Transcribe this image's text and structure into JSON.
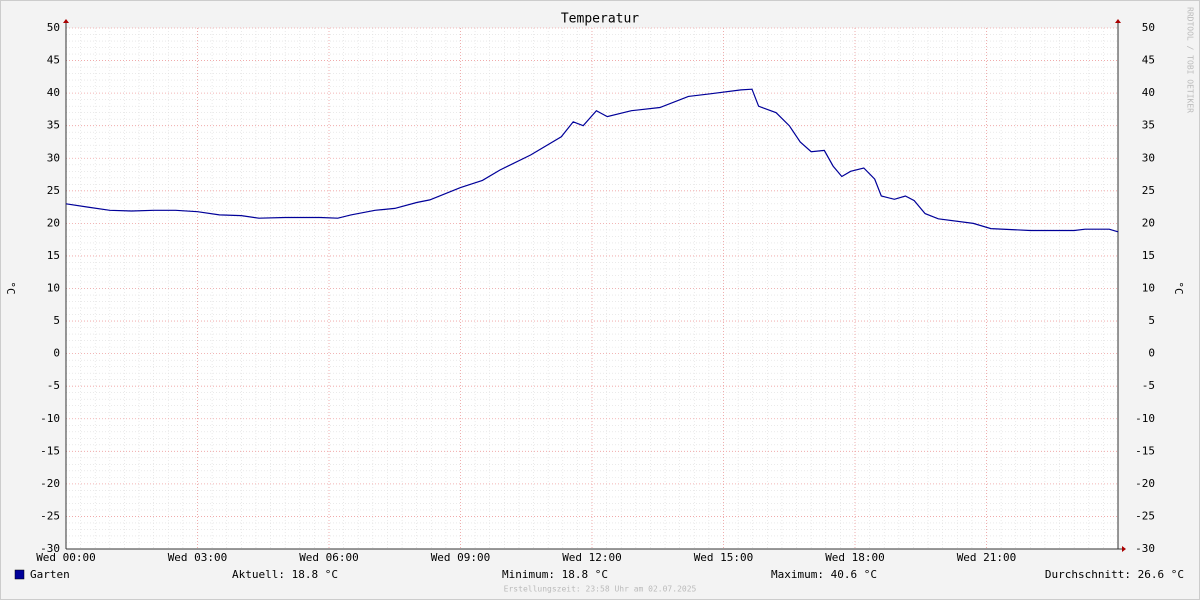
{
  "chart_data": {
    "type": "line",
    "title": "Temperatur",
    "y_label": "°C",
    "watermark": "RRDTOOL / TOBI OETIKER",
    "footer": "Erstellungszeit: 23:58 Uhr am 02.07.2025",
    "xlim": [
      0,
      24
    ],
    "xticks": [
      {
        "value": 0,
        "label": "Wed 00:00"
      },
      {
        "value": 3,
        "label": "Wed 03:00"
      },
      {
        "value": 6,
        "label": "Wed 06:00"
      },
      {
        "value": 9,
        "label": "Wed 09:00"
      },
      {
        "value": 12,
        "label": "Wed 12:00"
      },
      {
        "value": 15,
        "label": "Wed 15:00"
      },
      {
        "value": 18,
        "label": "Wed 18:00"
      },
      {
        "value": 21,
        "label": "Wed 21:00"
      }
    ],
    "ylim": [
      -30,
      50
    ],
    "yticks": [
      -30,
      -25,
      -20,
      -15,
      -10,
      -5,
      0,
      5,
      10,
      15,
      20,
      25,
      30,
      35,
      40,
      45,
      50
    ],
    "grid": true,
    "x": [
      0,
      0.5,
      1,
      1.5,
      2,
      2.5,
      3,
      3.5,
      4,
      4.4,
      5,
      5.5,
      5.8,
      6.2,
      6.5,
      7.05,
      7.5,
      8,
      8.3,
      9,
      9.5,
      9.9,
      10.6,
      11.3,
      11.57,
      11.8,
      12.1,
      12.35,
      12.9,
      13.55,
      14.2,
      14.7,
      15.4,
      15.65,
      15.8,
      16.2,
      16.5,
      16.75,
      17,
      17.3,
      17.5,
      17.7,
      17.9,
      18.2,
      18.45,
      18.6,
      18.9,
      19.15,
      19.35,
      19.6,
      19.9,
      20.7,
      21.1,
      22,
      23,
      23.25,
      23.8,
      24
    ],
    "series": [
      {
        "name": "Garten",
        "color": "#000099",
        "values": [
          23.0,
          22.5,
          22.0,
          21.9,
          22.0,
          22.0,
          21.8,
          21.3,
          21.2,
          20.8,
          20.9,
          20.9,
          20.9,
          20.8,
          21.3,
          22.0,
          22.3,
          23.2,
          23.6,
          25.5,
          26.6,
          28.2,
          30.5,
          33.3,
          35.6,
          35.0,
          37.3,
          36.4,
          37.3,
          37.8,
          39.5,
          39.9,
          40.5,
          40.6,
          38.0,
          37.0,
          35.0,
          32.5,
          31.0,
          31.2,
          28.8,
          27.2,
          28.0,
          28.5,
          26.8,
          24.2,
          23.7,
          24.2,
          23.5,
          21.5,
          20.7,
          20.0,
          19.2,
          18.9,
          18.9,
          19.1,
          19.1,
          18.7
        ]
      }
    ],
    "stats": [
      "Aktuell: 18.8 °C",
      "Minimum: 18.8 °C",
      "Maximum: 40.6 °C",
      "Durchschnitt: 26.6 °C"
    ]
  }
}
